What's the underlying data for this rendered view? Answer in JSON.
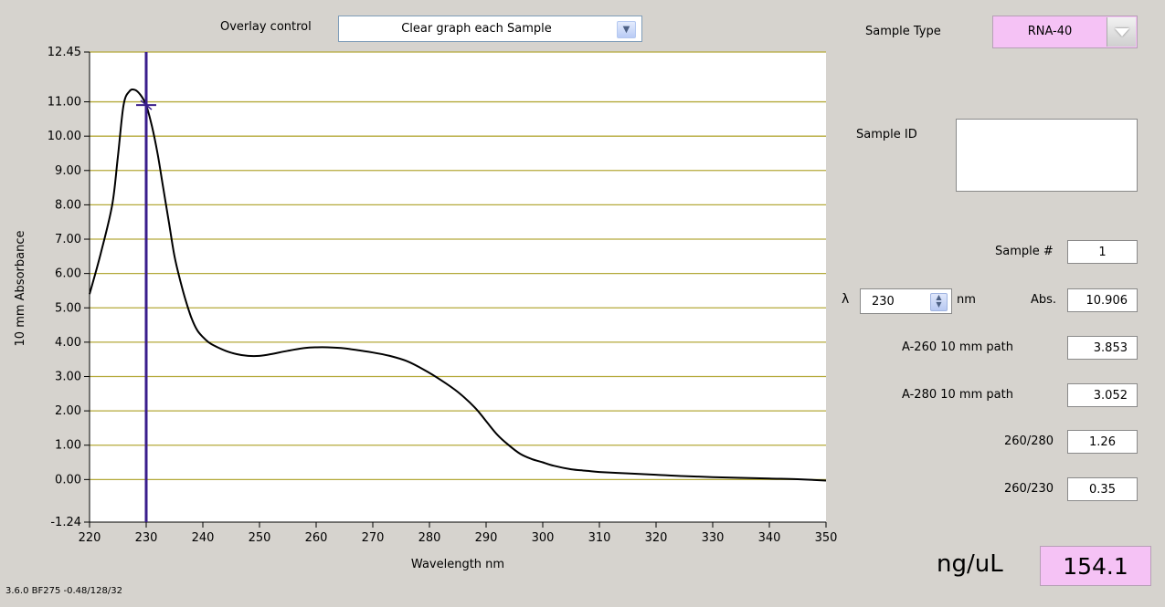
{
  "overlay": {
    "label": "Overlay control",
    "value": "Clear graph each Sample"
  },
  "sample_type": {
    "label": "Sample Type",
    "value": "RNA-40"
  },
  "sample_id": {
    "label": "Sample ID",
    "value": ""
  },
  "sample_num": {
    "label": "Sample #",
    "value": "1"
  },
  "lambda": {
    "symbol": "λ",
    "value": "230",
    "unit": "nm"
  },
  "abs": {
    "label": "Abs.",
    "value": "10.906"
  },
  "a260": {
    "label": "A-260 10 mm path",
    "value": "3.853"
  },
  "a280": {
    "label": "A-280 10 mm path",
    "value": "3.052"
  },
  "r260_280": {
    "label": "260/280",
    "value": "1.26"
  },
  "r260_230": {
    "label": "260/230",
    "value": "0.35"
  },
  "concentration": {
    "label": "ng/uL",
    "value": "154.1"
  },
  "footer": {
    "version": "3.6.0 BF275 -0.48/128/32"
  },
  "colors": {
    "background": "#d6d3ce",
    "grid": "#b4a93a",
    "cursor": "#3a1e8c",
    "curve": "#000000",
    "highlight": "#f5c2f5"
  },
  "chart_data": {
    "type": "line",
    "xlabel": "Wavelength nm",
    "ylabel": "10 mm Absorbance",
    "xlim": [
      220,
      350
    ],
    "ylim": [
      -1.24,
      12.45
    ],
    "x_ticks": [
      "220",
      "230",
      "240",
      "250",
      "260",
      "270",
      "280",
      "290",
      "300",
      "310",
      "320",
      "330",
      "340",
      "350"
    ],
    "y_ticks": [
      "12.45",
      "11.00",
      "10.00",
      "9.00",
      "8.00",
      "7.00",
      "6.00",
      "5.00",
      "4.00",
      "3.00",
      "2.00",
      "1.00",
      "0.00",
      "-1.24"
    ],
    "y_tick_values": [
      12.45,
      11,
      10,
      9,
      8,
      7,
      6,
      5,
      4,
      3,
      2,
      1,
      0,
      -1.24
    ],
    "grid": "horizontal",
    "cursor_x": 230,
    "series": [
      {
        "x": [
          220,
          222,
          224,
          225,
          226,
          227,
          228,
          229,
          230,
          231,
          232,
          233,
          234,
          235,
          236,
          237,
          238,
          239,
          240,
          241,
          242,
          244,
          246,
          248,
          250,
          252,
          255,
          258,
          260,
          262,
          265,
          268,
          270,
          273,
          276,
          279,
          282,
          285,
          288,
          290,
          292,
          294,
          296,
          298,
          300,
          302,
          305,
          308,
          310,
          315,
          320,
          325,
          330,
          335,
          340,
          345,
          350
        ],
        "y": [
          5.4,
          6.6,
          8.0,
          9.4,
          10.9,
          11.3,
          11.35,
          11.2,
          10.9,
          10.3,
          9.5,
          8.5,
          7.5,
          6.5,
          5.8,
          5.2,
          4.7,
          4.35,
          4.15,
          4.0,
          3.9,
          3.75,
          3.65,
          3.6,
          3.6,
          3.65,
          3.75,
          3.83,
          3.85,
          3.85,
          3.82,
          3.75,
          3.7,
          3.6,
          3.45,
          3.2,
          2.9,
          2.55,
          2.1,
          1.7,
          1.3,
          1.0,
          0.75,
          0.6,
          0.5,
          0.4,
          0.3,
          0.25,
          0.22,
          0.18,
          0.14,
          0.1,
          0.07,
          0.05,
          0.03,
          0.01,
          -0.03
        ]
      }
    ]
  }
}
